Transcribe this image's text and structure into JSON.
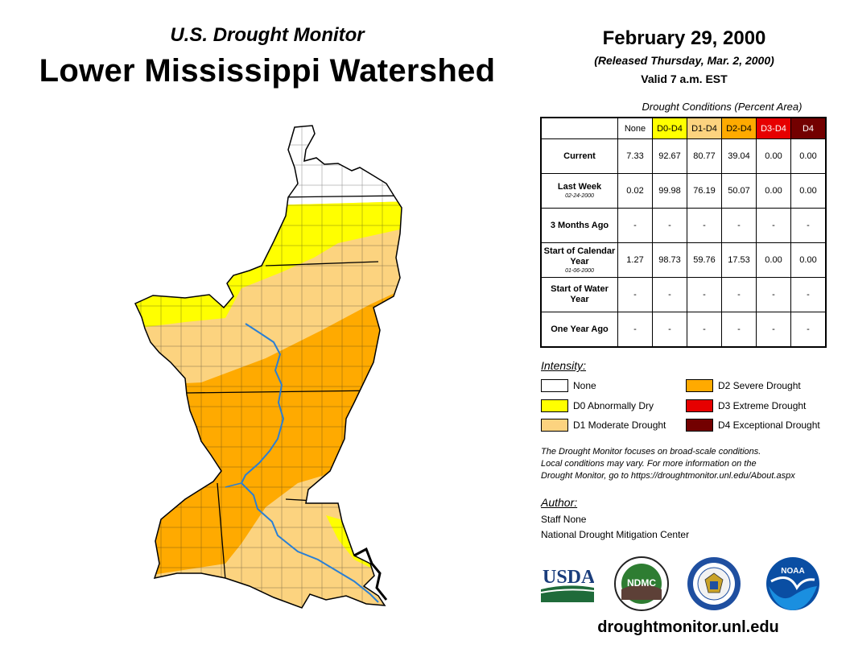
{
  "header": {
    "subtitle": "U.S. Drought Monitor",
    "title": "Lower Mississippi Watershed",
    "date": "February 29, 2000",
    "released": "(Released Thursday, Mar. 2, 2000)",
    "valid": "Valid 7 a.m. EST"
  },
  "table": {
    "caption": "Drought Conditions (Percent Area)",
    "columns": [
      "None",
      "D0-D4",
      "D1-D4",
      "D2-D4",
      "D3-D4",
      "D4"
    ],
    "column_colors": [
      "#ffffff",
      "#ffff00",
      "#fcd37f",
      "#ffaa00",
      "#e60000",
      "#730000"
    ],
    "rows": [
      {
        "label": "Current",
        "sublabel": "",
        "values": [
          "7.33",
          "92.67",
          "80.77",
          "39.04",
          "0.00",
          "0.00"
        ]
      },
      {
        "label": "Last Week",
        "sublabel": "02-24-2000",
        "values": [
          "0.02",
          "99.98",
          "76.19",
          "50.07",
          "0.00",
          "0.00"
        ]
      },
      {
        "label": "3 Months Ago",
        "sublabel": "",
        "values": [
          "-",
          "-",
          "-",
          "-",
          "-",
          "-"
        ]
      },
      {
        "label": "Start of Calendar Year",
        "sublabel": "01-06-2000",
        "values": [
          "1.27",
          "98.73",
          "59.76",
          "17.53",
          "0.00",
          "0.00"
        ]
      },
      {
        "label": "Start of Water Year",
        "sublabel": "",
        "values": [
          "-",
          "-",
          "-",
          "-",
          "-",
          "-"
        ]
      },
      {
        "label": "One Year Ago",
        "sublabel": "",
        "values": [
          "-",
          "-",
          "-",
          "-",
          "-",
          "-"
        ]
      }
    ]
  },
  "legend": {
    "title": "Intensity:",
    "items": [
      {
        "label": "None",
        "color": "#ffffff"
      },
      {
        "label": "D0 Abnormally Dry",
        "color": "#ffff00"
      },
      {
        "label": "D1 Moderate Drought",
        "color": "#fcd37f"
      },
      {
        "label": "D2 Severe Drought",
        "color": "#ffaa00"
      },
      {
        "label": "D3 Extreme Drought",
        "color": "#e60000"
      },
      {
        "label": "D4 Exceptional Drought",
        "color": "#730000"
      }
    ]
  },
  "note": {
    "line1": "The Drought Monitor focuses on broad-scale conditions.",
    "line2": "Local conditions may vary. For more information on the",
    "line3": "Drought Monitor, go to https://droughtmonitor.unl.edu/About.aspx"
  },
  "author": {
    "title": "Author:",
    "name": "Staff None",
    "org": "National Drought Mitigation Center"
  },
  "logos": {
    "usda": "USDA",
    "ndmc": "NDMC",
    "noaa": "NOAA"
  },
  "footer": {
    "site": "droughtmonitor.unl.edu"
  },
  "map": {
    "colors": {
      "none": "#ffffff",
      "d0": "#ffff00",
      "d1": "#fcd37f",
      "d2": "#ffaa00",
      "river": "#2a7fd4",
      "land_outline": "#000000"
    }
  }
}
